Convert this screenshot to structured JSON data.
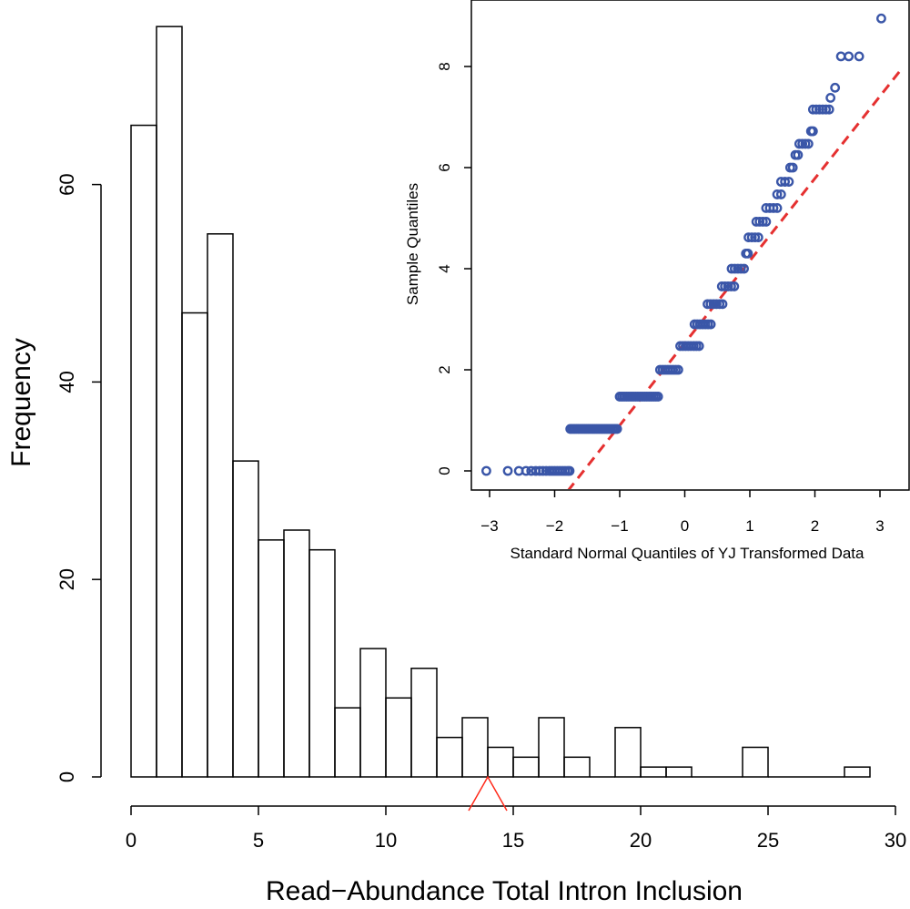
{
  "chart_data": [
    {
      "type": "bar",
      "subtype": "histogram",
      "xlabel": "Read−Abundance Total Intron Inclusion",
      "ylabel": "Frequency",
      "bin_width": 1,
      "x": [
        0,
        1,
        2,
        3,
        4,
        5,
        6,
        7,
        8,
        9,
        10,
        11,
        12,
        13,
        14,
        15,
        16,
        17,
        18,
        19,
        20,
        21,
        22,
        23,
        24,
        25,
        26,
        27,
        28
      ],
      "values": [
        66,
        76,
        47,
        55,
        32,
        24,
        25,
        23,
        7,
        13,
        8,
        11,
        4,
        6,
        3,
        2,
        6,
        2,
        0,
        5,
        1,
        1,
        0,
        0,
        3,
        0,
        0,
        0,
        1
      ],
      "xlim": [
        0,
        30
      ],
      "ylim": [
        0,
        76
      ],
      "x_ticks": [
        "0",
        "5",
        "10",
        "15",
        "20",
        "25",
        "30"
      ],
      "y_ticks": [
        "0",
        "20",
        "40",
        "60"
      ],
      "marker_arrow_x": 14,
      "marker_color": "#ff2a1a"
    },
    {
      "type": "scatter",
      "subtype": "qq-plot",
      "xlabel": "Standard Normal Quantiles of YJ Transformed Data",
      "ylabel": "Sample Quantiles",
      "xlim": [
        -3,
        3
      ],
      "ylim": [
        0,
        9
      ],
      "x_ticks": [
        "−3",
        "−2",
        "−1",
        "0",
        "1",
        "2",
        "3"
      ],
      "y_ticks": [
        "0",
        "2",
        "4",
        "6",
        "8"
      ],
      "point_color": "#3a56a8",
      "reference_line": {
        "x": [
          -1.8,
          3.3
        ],
        "y": [
          -0.4,
          7.9
        ],
        "color": "#e53030",
        "style": "dashed"
      },
      "point_runs": [
        {
          "y": 0.0,
          "x": [
            -3.05,
            -2.72,
            -2.55,
            -2.44,
            -2.36,
            -2.29,
            -2.23,
            -2.18,
            -2.13,
            -2.08,
            -2.04,
            -2.0,
            -1.96,
            -1.92,
            -1.88,
            -1.84,
            -1.8,
            -1.77
          ]
        },
        {
          "y": 0.83,
          "x_from": -1.76,
          "x_to": -1.04,
          "n": 24
        },
        {
          "y": 1.47,
          "x_from": -1.0,
          "x_to": -0.41,
          "n": 18
        },
        {
          "y": 2.0,
          "x_from": -0.38,
          "x_to": -0.1,
          "n": 8
        },
        {
          "y": 2.47,
          "x_from": -0.07,
          "x_to": 0.22,
          "n": 8
        },
        {
          "y": 2.9,
          "x_from": 0.15,
          "x_to": 0.4,
          "n": 7
        },
        {
          "y": 3.3,
          "x_from": 0.35,
          "x_to": 0.58,
          "n": 6
        },
        {
          "y": 3.65,
          "x_from": 0.57,
          "x_to": 0.76,
          "n": 5
        },
        {
          "y": 4.0,
          "x_from": 0.72,
          "x_to": 0.91,
          "n": 5
        },
        {
          "y": 4.3,
          "x_from": 0.94,
          "x_to": 0.97,
          "n": 2
        },
        {
          "y": 4.62,
          "x_from": 0.98,
          "x_to": 1.13,
          "n": 4
        },
        {
          "y": 4.93,
          "x_from": 1.1,
          "x_to": 1.25,
          "n": 4
        },
        {
          "y": 5.2,
          "x_from": 1.25,
          "x_to": 1.42,
          "n": 4
        },
        {
          "y": 5.47,
          "x_from": 1.42,
          "x_to": 1.48,
          "n": 2
        },
        {
          "y": 5.72,
          "x_from": 1.48,
          "x_to": 1.6,
          "n": 3
        },
        {
          "y": 6.0,
          "x_from": 1.62,
          "x_to": 1.66,
          "n": 2
        },
        {
          "y": 6.25,
          "x_from": 1.7,
          "x_to": 1.74,
          "n": 2
        },
        {
          "y": 6.47,
          "x_from": 1.76,
          "x_to": 1.9,
          "n": 4
        },
        {
          "y": 6.72,
          "x_from": 1.94,
          "x_to": 1.97,
          "n": 2
        },
        {
          "y": 7.15,
          "x_from": 1.97,
          "x_to": 2.22,
          "n": 6
        },
        {
          "y": 7.38,
          "x_from": 2.24,
          "x_to": 2.24,
          "n": 1
        },
        {
          "y": 7.58,
          "x_from": 2.31,
          "x_to": 2.31,
          "n": 1
        },
        {
          "y": 8.2,
          "x_from": 2.4,
          "x_to": 2.52,
          "n": 2
        },
        {
          "y": 8.2,
          "x_from": 2.68,
          "x_to": 2.68,
          "n": 1
        },
        {
          "y": 8.95,
          "x_from": 3.02,
          "x_to": 3.02,
          "n": 1
        }
      ]
    }
  ]
}
